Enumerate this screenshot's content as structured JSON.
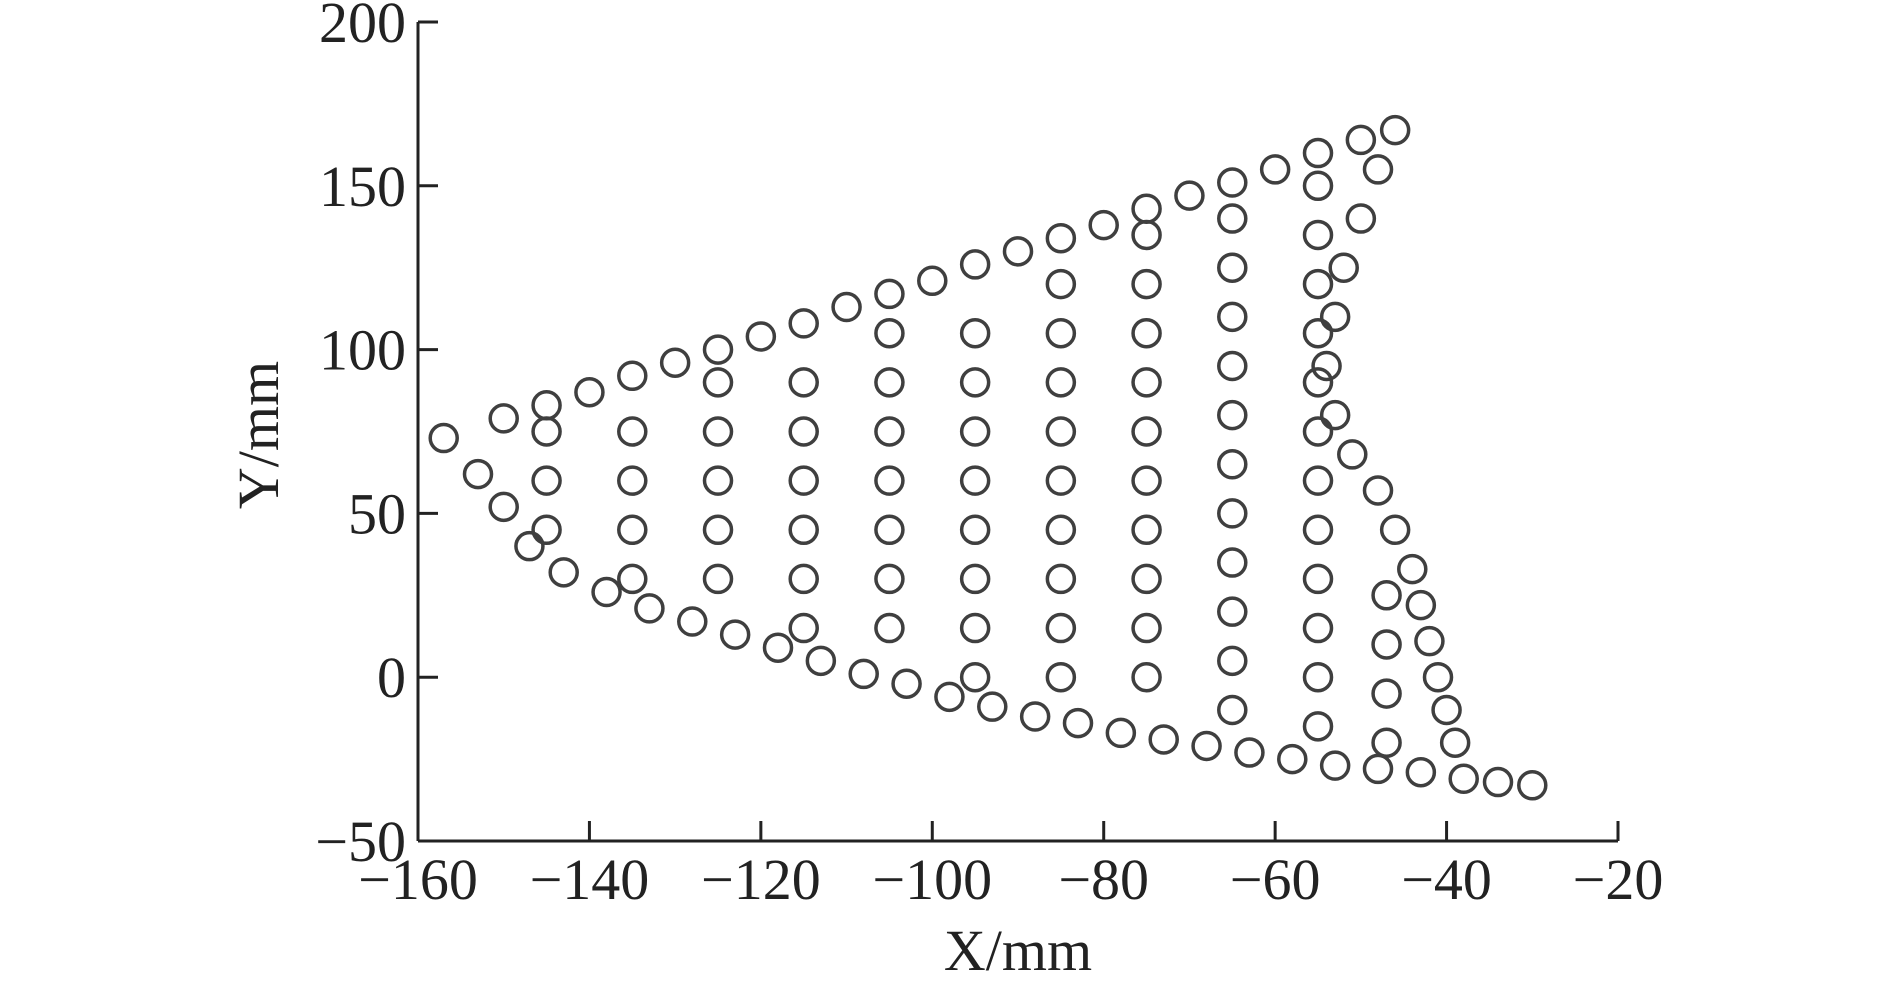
{
  "chart_data": {
    "type": "scatter",
    "xlabel": "X/mm",
    "ylabel": "Y/mm",
    "color": "#3f3f3f",
    "x": [
      -157,
      -150,
      -145,
      -140,
      -135,
      -130,
      -125,
      -120,
      -115,
      -110,
      -105,
      -100,
      -95,
      -90,
      -85,
      -80,
      -75,
      -70,
      -65,
      -60,
      -55,
      -50,
      -46,
      -153,
      -150,
      -147,
      -143,
      -138,
      -133,
      -128,
      -123,
      -118,
      -113,
      -108,
      -103,
      -98,
      -93,
      -88,
      -83,
      -78,
      -73,
      -68,
      -63,
      -58,
      -53,
      -48,
      -43,
      -38,
      -34,
      -30,
      -48,
      -50,
      -52,
      -53,
      -54,
      -53,
      -51,
      -48,
      -46,
      -44,
      -43,
      -42,
      -41,
      -40,
      -39,
      -145,
      -145,
      -145,
      -135,
      -135,
      -135,
      -135,
      -125,
      -125,
      -125,
      -125,
      -125,
      -115,
      -115,
      -115,
      -115,
      -115,
      -115,
      -105,
      -105,
      -105,
      -105,
      -105,
      -105,
      -105,
      -95,
      -95,
      -95,
      -95,
      -95,
      -95,
      -95,
      -95,
      -85,
      -85,
      -85,
      -85,
      -85,
      -85,
      -85,
      -85,
      -85,
      -75,
      -75,
      -75,
      -75,
      -75,
      -75,
      -75,
      -75,
      -75,
      -75,
      -65,
      -65,
      -65,
      -65,
      -65,
      -65,
      -65,
      -65,
      -65,
      -65,
      -65,
      -55,
      -55,
      -55,
      -55,
      -55,
      -55,
      -55,
      -55,
      -55,
      -55,
      -55,
      -55,
      -47,
      -47,
      -47,
      -47
    ],
    "values": [
      73,
      79,
      83,
      87,
      92,
      96,
      100,
      104,
      108,
      113,
      117,
      121,
      126,
      130,
      134,
      138,
      143,
      147,
      151,
      155,
      160,
      164,
      167,
      62,
      52,
      40,
      32,
      26,
      21,
      17,
      13,
      9,
      5,
      1,
      -2,
      -6,
      -9,
      -12,
      -14,
      -17,
      -19,
      -21,
      -23,
      -25,
      -27,
      -28,
      -29,
      -31,
      -32,
      -33,
      155,
      140,
      125,
      110,
      95,
      80,
      68,
      57,
      45,
      33,
      22,
      11,
      0,
      -10,
      -20,
      45,
      60,
      75,
      30,
      45,
      60,
      75,
      30,
      45,
      60,
      75,
      90,
      15,
      30,
      45,
      60,
      75,
      90,
      15,
      30,
      45,
      60,
      75,
      90,
      105,
      0,
      15,
      30,
      45,
      60,
      75,
      90,
      105,
      0,
      15,
      30,
      45,
      60,
      75,
      90,
      105,
      120,
      0,
      15,
      30,
      45,
      60,
      75,
      90,
      105,
      120,
      135,
      -10,
      5,
      20,
      35,
      50,
      65,
      80,
      95,
      110,
      125,
      140,
      -15,
      0,
      15,
      30,
      45,
      60,
      75,
      90,
      105,
      120,
      135,
      150,
      -20,
      -5,
      10,
      25
    ],
    "xlim": [
      -160,
      -20
    ],
    "ylim": [
      -50,
      200
    ],
    "xticks": [
      {
        "value": -160,
        "label": "−160"
      },
      {
        "value": -140,
        "label": "−140"
      },
      {
        "value": -120,
        "label": "−120"
      },
      {
        "value": -100,
        "label": "−100"
      },
      {
        "value": -80,
        "label": "−80"
      },
      {
        "value": -60,
        "label": "−60"
      },
      {
        "value": -40,
        "label": "−40"
      },
      {
        "value": -20,
        "label": "−20"
      }
    ],
    "yticks": [
      {
        "value": -50,
        "label": "−50"
      },
      0,
      50,
      100,
      150,
      200
    ]
  }
}
